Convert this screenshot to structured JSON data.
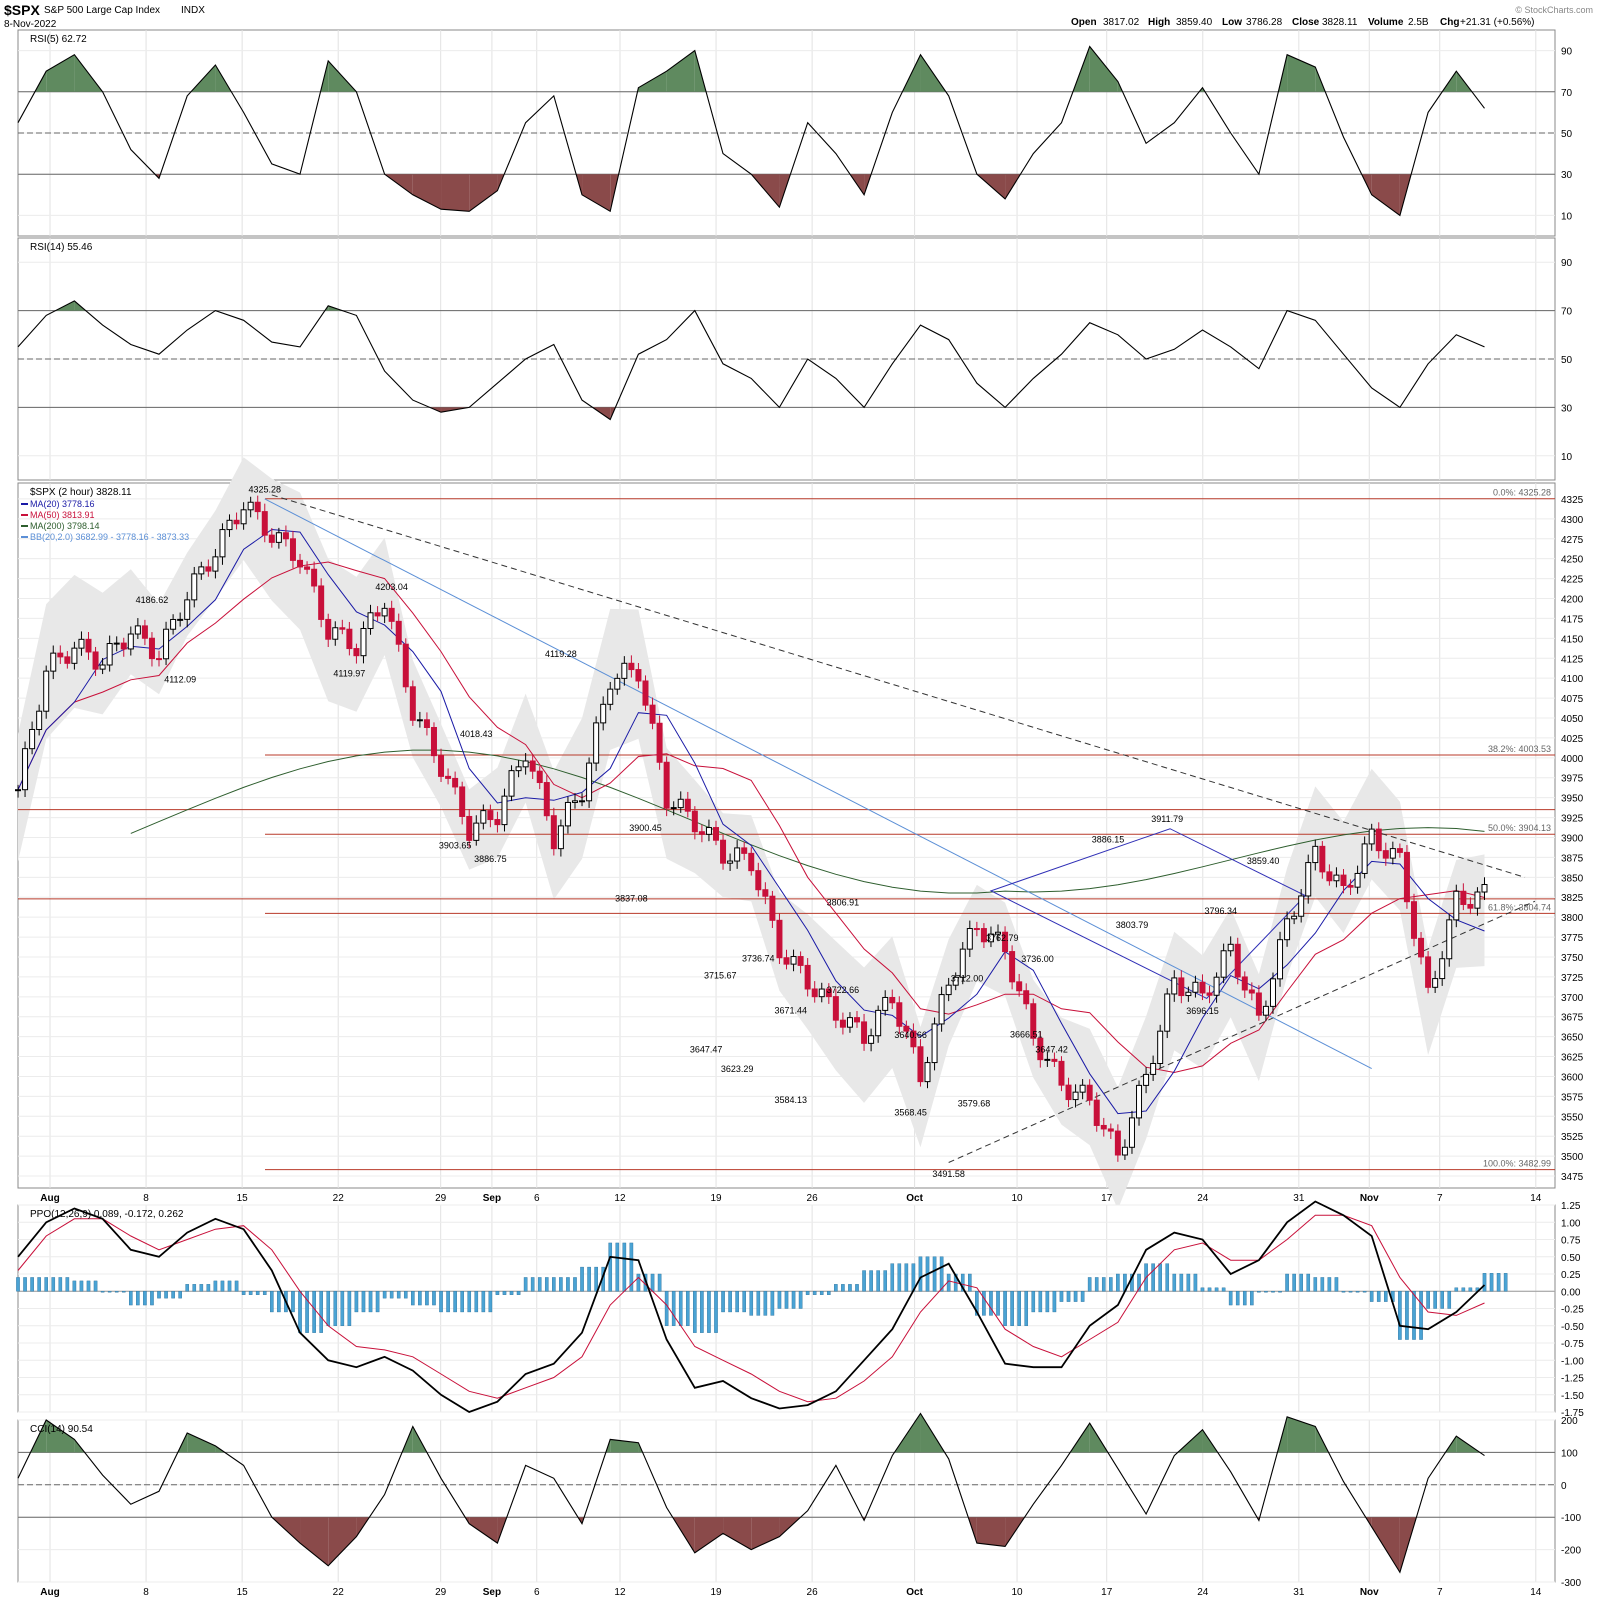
{
  "header": {
    "symbol": "$SPX",
    "name": "S&P 500 Large Cap Index",
    "exchange": "INDX",
    "date": "8-Nov-2022",
    "open_label": "Open",
    "open": "3817.02",
    "high_label": "High",
    "high": "3859.40",
    "low_label": "Low",
    "low": "3786.28",
    "close_label": "Close",
    "close": "3828.11",
    "volume_label": "Volume",
    "volume": "2.5B",
    "chg_label": "Chg",
    "chg": "+21.31 (+0.56%)",
    "watermark": "© StockCharts.com"
  },
  "colors": {
    "up": "#000000",
    "down": "#c8103a",
    "ma20": "#1a1aa6",
    "ma50": "#c8103a",
    "ma200": "#2e5e2e",
    "fib": "#b83a2a",
    "trend_blue": "#5b8fd6",
    "channel": "#2f2fb6",
    "overbought_fill": "#5f8a5f",
    "oversold_fill": "#8a4a4a",
    "histogram": "#4aa3d4",
    "band_fill": "#e8e8e8"
  },
  "x_axis": {
    "labels": [
      {
        "label": "Aug",
        "bold": true
      },
      {
        "label": "8",
        "bold": false
      },
      {
        "label": "15",
        "bold": false
      },
      {
        "label": "22",
        "bold": false
      },
      {
        "label": "29",
        "bold": false
      },
      {
        "label": "Sep",
        "bold": true
      },
      {
        "label": "6",
        "bold": false
      },
      {
        "label": "12",
        "bold": false
      },
      {
        "label": "19",
        "bold": false
      },
      {
        "label": "26",
        "bold": false
      },
      {
        "label": "Oct",
        "bold": true
      },
      {
        "label": "10",
        "bold": false
      },
      {
        "label": "17",
        "bold": false
      },
      {
        "label": "24",
        "bold": false
      },
      {
        "label": "31",
        "bold": false
      },
      {
        "label": "Nov",
        "bold": true
      },
      {
        "label": "7",
        "bold": false
      },
      {
        "label": "14",
        "bold": false
      }
    ]
  },
  "chart_data": [
    {
      "type": "line",
      "title": "RSI(5) 62.72",
      "ylim": [
        0,
        100
      ],
      "y_ticks": [
        10,
        30,
        50,
        70,
        90
      ],
      "levels": [
        30,
        50,
        70
      ],
      "x": [
        0,
        2,
        4,
        6,
        8,
        10,
        12,
        14,
        16,
        18,
        20,
        22,
        24,
        26,
        28,
        30,
        32,
        34,
        36,
        38,
        40,
        42,
        44,
        46,
        48,
        50,
        52,
        54,
        56,
        58,
        60,
        62,
        64,
        66,
        68,
        70,
        72,
        74,
        76,
        78,
        80,
        82,
        84,
        86,
        88,
        90,
        92,
        94,
        96,
        98,
        100,
        102,
        104
      ],
      "values": [
        55,
        80,
        88,
        70,
        42,
        28,
        68,
        83,
        60,
        35,
        30,
        85,
        70,
        30,
        20,
        13,
        12,
        22,
        55,
        68,
        20,
        12,
        72,
        80,
        90,
        40,
        30,
        14,
        55,
        40,
        20,
        60,
        88,
        68,
        30,
        18,
        40,
        55,
        92,
        75,
        45,
        55,
        72,
        50,
        30,
        88,
        82,
        48,
        20,
        10,
        60,
        80,
        62
      ]
    },
    {
      "type": "line",
      "title": "RSI(14) 55.46",
      "ylim": [
        0,
        100
      ],
      "y_ticks": [
        10,
        30,
        50,
        70,
        90
      ],
      "levels": [
        30,
        50,
        70
      ],
      "x": [
        0,
        2,
        4,
        6,
        8,
        10,
        12,
        14,
        16,
        18,
        20,
        22,
        24,
        26,
        28,
        30,
        32,
        34,
        36,
        38,
        40,
        42,
        44,
        46,
        48,
        50,
        52,
        54,
        56,
        58,
        60,
        62,
        64,
        66,
        68,
        70,
        72,
        74,
        76,
        78,
        80,
        82,
        84,
        86,
        88,
        90,
        92,
        94,
        96,
        98,
        100,
        102,
        104
      ],
      "values": [
        55,
        68,
        74,
        64,
        56,
        52,
        62,
        70,
        66,
        57,
        55,
        72,
        68,
        45,
        33,
        28,
        30,
        40,
        50,
        56,
        33,
        25,
        52,
        58,
        70,
        48,
        42,
        30,
        50,
        42,
        30,
        48,
        64,
        58,
        40,
        30,
        42,
        52,
        65,
        60,
        50,
        54,
        62,
        55,
        46,
        70,
        66,
        52,
        38,
        30,
        48,
        60,
        55
      ]
    },
    {
      "type": "candlestick",
      "title": "$SPX (2 hour) 3828.11",
      "legend": [
        {
          "label": "MA(20) 3778.16",
          "color": "#1a1aa6"
        },
        {
          "label": "MA(50) 3813.91",
          "color": "#c8103a"
        },
        {
          "label": "MA(200) 3798.14",
          "color": "#2e5e2e"
        },
        {
          "label": "BB(20,2.0) 3682.99 - 3778.16 - 3873.33",
          "color": "#5b8fd6"
        }
      ],
      "ylim": [
        3460,
        4345
      ],
      "y_ticks": [
        3475,
        3500,
        3525,
        3550,
        3575,
        3600,
        3625,
        3650,
        3675,
        3700,
        3725,
        3750,
        3775,
        3800,
        3825,
        3850,
        3875,
        3900,
        3925,
        3950,
        3975,
        4000,
        4025,
        4050,
        4075,
        4100,
        4125,
        4150,
        4175,
        4200,
        4225,
        4250,
        4275,
        4300,
        4325
      ],
      "close_path": {
        "x": [
          0,
          2,
          4,
          6,
          8,
          10,
          12,
          14,
          16,
          18,
          20,
          22,
          24,
          26,
          28,
          30,
          32,
          34,
          36,
          38,
          40,
          42,
          44,
          46,
          48,
          50,
          52,
          54,
          56,
          58,
          60,
          62,
          64,
          66,
          68,
          70,
          72,
          74,
          76,
          78,
          80,
          82,
          84,
          86,
          88,
          90,
          92,
          94,
          96,
          98,
          100,
          102,
          104
        ],
        "values": [
          3960,
          4110,
          4140,
          4120,
          4160,
          4130,
          4205,
          4260,
          4320,
          4280,
          4250,
          4160,
          4140,
          4200,
          4060,
          3990,
          3910,
          3930,
          4010,
          3900,
          3960,
          4100,
          4110,
          3950,
          3920,
          3880,
          3870,
          3760,
          3720,
          3680,
          3650,
          3700,
          3600,
          3720,
          3790,
          3760,
          3650,
          3590,
          3570,
          3500,
          3600,
          3720,
          3700,
          3760,
          3670,
          3790,
          3880,
          3830,
          3900,
          3870,
          3700,
          3820,
          3828
        ]
      },
      "annotations": [
        {
          "label": "4325.28",
          "x": 17.5,
          "y": 4325.28,
          "pos": "above"
        },
        {
          "label": "4186.62",
          "x": 9.5,
          "y": 4186.62,
          "pos": "above"
        },
        {
          "label": "4112.09",
          "x": 11.5,
          "y": 4112.09,
          "pos": "below"
        },
        {
          "label": "4203.04",
          "x": 26.5,
          "y": 4203.04,
          "pos": "above"
        },
        {
          "label": "4119.97",
          "x": 23.5,
          "y": 4119.97,
          "pos": "below"
        },
        {
          "label": "4018.43",
          "x": 32.5,
          "y": 4018.43,
          "pos": "above"
        },
        {
          "label": "3903.65",
          "x": 31.0,
          "y": 3903.65,
          "pos": "below"
        },
        {
          "label": "3886.75",
          "x": 33.5,
          "y": 3886.75,
          "pos": "below"
        },
        {
          "label": "4119.28",
          "x": 38.5,
          "y": 4119.28,
          "pos": "above"
        },
        {
          "label": "3900.45",
          "x": 44.5,
          "y": 3900.45,
          "pos": "above"
        },
        {
          "label": "3837.08",
          "x": 43.5,
          "y": 3837.08,
          "pos": "below"
        },
        {
          "label": "3736.74",
          "x": 52.5,
          "y": 3736.74,
          "pos": "above"
        },
        {
          "label": "3715.67",
          "x": 49.8,
          "y": 3715.67,
          "pos": "above"
        },
        {
          "label": "3671.44",
          "x": 54.8,
          "y": 3671.44,
          "pos": "above"
        },
        {
          "label": "3647.47",
          "x": 48.8,
          "y": 3647.47,
          "pos": "below"
        },
        {
          "label": "3623.29",
          "x": 51.0,
          "y": 3623.29,
          "pos": "below"
        },
        {
          "label": "3584.13",
          "x": 54.8,
          "y": 3584.13,
          "pos": "below"
        },
        {
          "label": "3806.91",
          "x": 58.5,
          "y": 3806.91,
          "pos": "above"
        },
        {
          "label": "3722.66",
          "x": 58.5,
          "y": 3722.66,
          "pos": "below"
        },
        {
          "label": "3640.66",
          "x": 63.3,
          "y": 3640.66,
          "pos": "above"
        },
        {
          "label": "3568.45",
          "x": 63.3,
          "y": 3568.45,
          "pos": "below"
        },
        {
          "label": "3712.00",
          "x": 67.3,
          "y": 3712.0,
          "pos": "above"
        },
        {
          "label": "3579.68",
          "x": 67.8,
          "y": 3579.68,
          "pos": "below"
        },
        {
          "label": "3491.58",
          "x": 66.0,
          "y": 3491.58,
          "pos": "below"
        },
        {
          "label": "3762.79",
          "x": 69.8,
          "y": 3762.79,
          "pos": "above"
        },
        {
          "label": "3736.00",
          "x": 72.3,
          "y": 3736.0,
          "pos": "above"
        },
        {
          "label": "3666.51",
          "x": 71.5,
          "y": 3666.51,
          "pos": "below"
        },
        {
          "label": "3647.42",
          "x": 73.3,
          "y": 3647.42,
          "pos": "below"
        },
        {
          "label": "3886.15",
          "x": 77.3,
          "y": 3886.15,
          "pos": "above"
        },
        {
          "label": "3803.79",
          "x": 79.0,
          "y": 3803.79,
          "pos": "below"
        },
        {
          "label": "3911.79",
          "x": 81.5,
          "y": 3911.79,
          "pos": "above"
        },
        {
          "label": "3796.34",
          "x": 85.3,
          "y": 3796.34,
          "pos": "above"
        },
        {
          "label": "3696.15",
          "x": 84.0,
          "y": 3696.15,
          "pos": "below"
        },
        {
          "label": "3859.40",
          "x": 88.3,
          "y": 3859.4,
          "pos": "above"
        }
      ],
      "fib_levels": [
        {
          "label": "0.0%: 4325.28",
          "value": 4325.28
        },
        {
          "label": "38.2%: 4003.53",
          "value": 4003.53
        },
        {
          "label": "50.0%: 3904.13",
          "value": 3904.13
        },
        {
          "label": "61.8%: 3804.74",
          "value": 3804.74
        },
        {
          "label": "100.0%: 3482.99",
          "value": 3482.99
        }
      ],
      "extra_levels": [
        3935,
        3823
      ]
    },
    {
      "type": "line",
      "title": "PPO(12,26,9) 0.089, -0.172, 0.262",
      "series": [
        {
          "name": "0.089",
          "color": "#000000"
        },
        {
          "name": "-0.172",
          "color": "#c8103a"
        },
        {
          "name": "0.262",
          "color": "#4aa3d4"
        }
      ],
      "ylim": [
        -1.75,
        1.25
      ],
      "y_ticks": [
        -1.75,
        -1.5,
        -1.25,
        -1.0,
        -0.75,
        -0.5,
        -0.25,
        0.0,
        0.25,
        0.5,
        0.75,
        1.0,
        1.25
      ],
      "x": [
        0,
        2,
        4,
        6,
        8,
        10,
        12,
        14,
        16,
        18,
        20,
        22,
        24,
        26,
        28,
        30,
        32,
        34,
        36,
        38,
        40,
        42,
        44,
        46,
        48,
        50,
        52,
        54,
        56,
        58,
        60,
        62,
        64,
        66,
        68,
        70,
        72,
        74,
        76,
        78,
        80,
        82,
        84,
        86,
        88,
        90,
        92,
        94,
        96,
        98,
        100,
        102,
        104
      ],
      "values": [
        0.5,
        1.0,
        1.2,
        1.05,
        0.6,
        0.5,
        0.85,
        1.05,
        0.9,
        0.3,
        -0.6,
        -1.0,
        -1.1,
        -0.95,
        -1.15,
        -1.5,
        -1.75,
        -1.6,
        -1.2,
        -1.05,
        -0.6,
        0.5,
        0.45,
        -0.7,
        -1.4,
        -1.3,
        -1.55,
        -1.7,
        -1.65,
        -1.45,
        -1.0,
        -0.55,
        0.2,
        0.4,
        -0.3,
        -1.05,
        -1.1,
        -1.1,
        -0.5,
        -0.2,
        0.6,
        0.85,
        0.75,
        0.25,
        0.45,
        1.0,
        1.3,
        1.1,
        0.8,
        -0.5,
        -0.55,
        -0.3,
        0.09
      ],
      "signal": [
        0.3,
        0.8,
        1.05,
        1.05,
        0.8,
        0.6,
        0.75,
        0.9,
        0.95,
        0.6,
        0.0,
        -0.5,
        -0.8,
        -0.85,
        -0.95,
        -1.2,
        -1.45,
        -1.55,
        -1.4,
        -1.25,
        -0.95,
        -0.2,
        0.2,
        -0.2,
        -0.8,
        -1.0,
        -1.2,
        -1.45,
        -1.6,
        -1.55,
        -1.3,
        -0.95,
        -0.3,
        0.15,
        0.05,
        -0.55,
        -0.8,
        -0.95,
        -0.7,
        -0.45,
        0.2,
        0.6,
        0.7,
        0.45,
        0.45,
        0.75,
        1.1,
        1.1,
        0.95,
        0.2,
        -0.3,
        -0.35,
        -0.17
      ],
      "histogram": [
        0.2,
        0.2,
        0.15,
        0.0,
        -0.2,
        -0.1,
        0.1,
        0.15,
        -0.05,
        -0.3,
        -0.6,
        -0.5,
        -0.3,
        -0.1,
        -0.2,
        -0.3,
        -0.3,
        -0.05,
        0.2,
        0.2,
        0.35,
        0.7,
        0.25,
        -0.5,
        -0.6,
        -0.3,
        -0.35,
        -0.25,
        -0.05,
        0.1,
        0.3,
        0.4,
        0.5,
        0.25,
        -0.35,
        -0.5,
        -0.3,
        -0.15,
        0.2,
        0.25,
        0.4,
        0.25,
        0.05,
        -0.2,
        0.0,
        0.25,
        0.2,
        0.0,
        -0.15,
        -0.7,
        -0.25,
        0.05,
        0.26
      ]
    },
    {
      "type": "line",
      "title": "CCI(14) 90.54",
      "ylim": [
        -300,
        200
      ],
      "y_ticks": [
        -300,
        -200,
        -100,
        0,
        100,
        200
      ],
      "levels": [
        -100,
        0,
        100
      ],
      "x": [
        0,
        2,
        4,
        6,
        8,
        10,
        12,
        14,
        16,
        18,
        20,
        22,
        24,
        26,
        28,
        30,
        32,
        34,
        36,
        38,
        40,
        42,
        44,
        46,
        48,
        50,
        52,
        54,
        56,
        58,
        60,
        62,
        64,
        66,
        68,
        70,
        72,
        74,
        76,
        78,
        80,
        82,
        84,
        86,
        88,
        90,
        92,
        94,
        96,
        98,
        100,
        102,
        104
      ],
      "values": [
        20,
        200,
        140,
        30,
        -60,
        -20,
        160,
        120,
        60,
        -100,
        -180,
        -250,
        -160,
        -30,
        180,
        20,
        -120,
        -180,
        60,
        20,
        -120,
        140,
        130,
        -70,
        -210,
        -150,
        -200,
        -160,
        -80,
        60,
        -110,
        90,
        220,
        80,
        -180,
        -190,
        -60,
        60,
        190,
        50,
        -90,
        90,
        170,
        40,
        -110,
        210,
        180,
        10,
        -130,
        -270,
        20,
        150,
        90
      ]
    }
  ]
}
